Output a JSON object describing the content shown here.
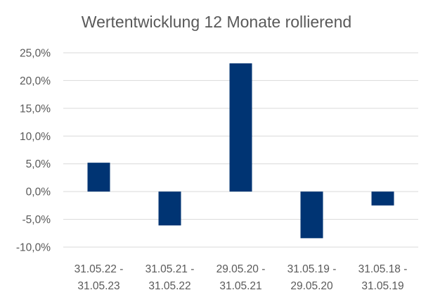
{
  "chart_data": {
    "type": "bar",
    "title": "Wertentwicklung 12 Monate rollierend",
    "xlabel": "",
    "ylabel": "",
    "categories": [
      [
        "31.05.22 -",
        "31.05.23"
      ],
      [
        "31.05.21 -",
        "31.05.22"
      ],
      [
        "29.05.20 -",
        "31.05.21"
      ],
      [
        "31.05.19 -",
        "29.05.20"
      ],
      [
        "31.05.18 -",
        "31.05.19"
      ]
    ],
    "values": [
      5.2,
      -6.1,
      23.1,
      -8.4,
      -2.5
    ],
    "ylim": [
      -10,
      25
    ],
    "yticks": [
      25,
      20,
      15,
      10,
      5,
      0,
      -5,
      -10
    ],
    "ytick_labels": [
      "25,0%",
      "20,0%",
      "15,0%",
      "10,0%",
      "5,0%",
      "0,0%",
      "-5,0%",
      "-10,0%"
    ],
    "bar_color": "#003473",
    "grid": true,
    "legend": "none"
  }
}
